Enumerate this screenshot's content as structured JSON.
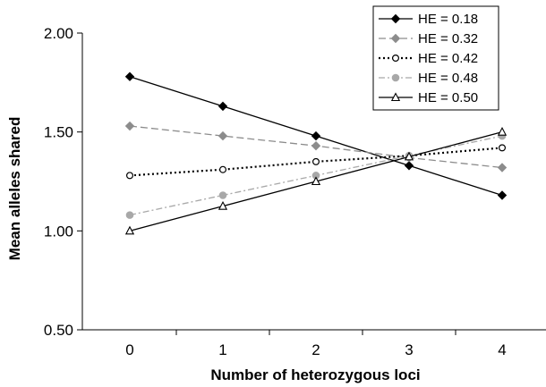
{
  "chart_data": {
    "type": "line",
    "xlabel": "Number of heterozygous loci",
    "ylabel": "Mean alleles shared",
    "x": [
      0,
      1,
      2,
      3,
      4
    ],
    "ylim": [
      0.5,
      2.0
    ],
    "y_ticks": [
      "0.50",
      "1.00",
      "1.50",
      "2.00"
    ],
    "x_ticks": [
      "0",
      "1",
      "2",
      "3",
      "4"
    ],
    "grid": false,
    "legend_position": "top-right",
    "series": [
      {
        "name": "HE = 0.18",
        "values": [
          1.78,
          1.63,
          1.48,
          1.33,
          1.18
        ],
        "color": "#000000",
        "dash": "solid",
        "marker": "diamond-filled"
      },
      {
        "name": "HE = 0.32",
        "values": [
          1.53,
          1.48,
          1.43,
          1.37,
          1.32
        ],
        "color": "#8c8c8c",
        "dash": "dashed",
        "marker": "diamond-filled"
      },
      {
        "name": "HE = 0.42",
        "values": [
          1.28,
          1.31,
          1.35,
          1.38,
          1.42
        ],
        "color": "#000000",
        "dash": "dotted",
        "marker": "circle-open"
      },
      {
        "name": "HE = 0.48",
        "values": [
          1.08,
          1.18,
          1.28,
          1.38,
          1.48
        ],
        "color": "#a8a8a8",
        "dash": "dash-dot",
        "marker": "circle-filled"
      },
      {
        "name": "HE = 0.50",
        "values": [
          1.0,
          1.125,
          1.25,
          1.375,
          1.5
        ],
        "color": "#000000",
        "dash": "solid",
        "marker": "triangle-open"
      }
    ]
  }
}
